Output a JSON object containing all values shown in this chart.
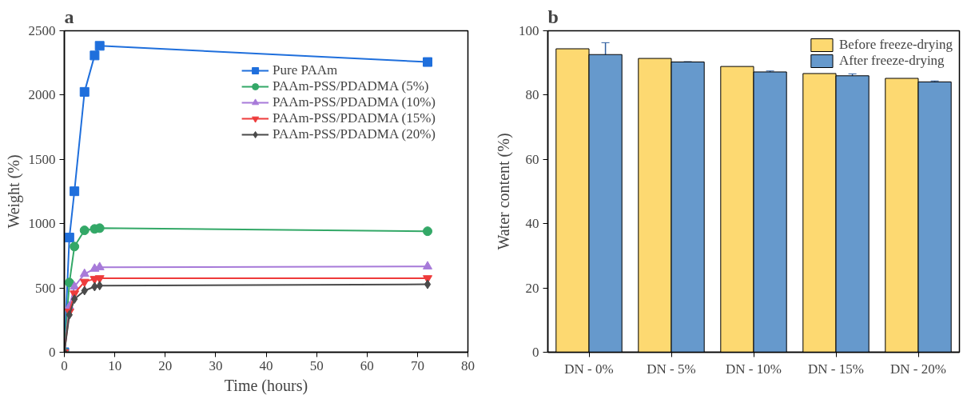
{
  "chart_data": [
    {
      "type": "line",
      "title": "a",
      "xlabel": "Time (hours)",
      "ylabel": "Weight (%)",
      "x": [
        0,
        1,
        2,
        4,
        6,
        7,
        72
      ],
      "xlim": [
        0,
        80
      ],
      "xticks": [
        0,
        10,
        20,
        30,
        40,
        50,
        60,
        70,
        80
      ],
      "ylim": [
        0,
        2500
      ],
      "yticks": [
        0,
        500,
        1000,
        1500,
        2000,
        2500
      ],
      "grid": false,
      "legend": "top right",
      "line_style": "solid",
      "series": [
        {
          "name": "Pure PAAm",
          "color": "#1f6fdc",
          "marker": "square",
          "values": [
            0,
            892,
            1252,
            2025,
            2308,
            2383,
            2257
          ]
        },
        {
          "name": "PAAm-PSS/PDADMA (5%)",
          "color": "#33a867",
          "marker": "circle",
          "values": [
            0,
            542,
            822,
            948,
            959,
            965,
            941
          ]
        },
        {
          "name": "PAAm-PSS/PDADMA (10%)",
          "color": "#a77ad9",
          "marker": "triangle",
          "values": [
            0,
            355,
            510,
            609,
            649,
            661,
            667
          ]
        },
        {
          "name": "PAAm-PSS/PDADMA (15%)",
          "color": "#ee3b3b",
          "marker": "triangle_down",
          "values": [
            0,
            315,
            457,
            548,
            570,
            576,
            576
          ]
        },
        {
          "name": "PAAm-PSS/PDADMA (20%)",
          "color": "#4a4a4a",
          "marker": "diamond",
          "values": [
            0,
            291,
            413,
            479,
            510,
            518,
            528
          ]
        }
      ]
    },
    {
      "type": "bar",
      "title": "b",
      "ylabel": "Water content (%)",
      "categories": [
        "DN - 0%",
        "DN - 5%",
        "DN - 10%",
        "DN - 15%",
        "DN - 20%"
      ],
      "ylim": [
        0,
        100
      ],
      "yticks": [
        0,
        20,
        40,
        60,
        80,
        100
      ],
      "grid": false,
      "legend": "top right",
      "series": [
        {
          "name": "Before freeze-drying",
          "color": "#fdd971",
          "values": [
            94.4,
            91.4,
            88.9,
            86.7,
            85.2
          ]
        },
        {
          "name": "After freeze-drying",
          "color": "#6699cc",
          "values": [
            92.6,
            90.3,
            87.2,
            86.0,
            84.1
          ],
          "errors": [
            3.7,
            0.1,
            0.3,
            0.6,
            0.3
          ]
        }
      ]
    }
  ]
}
